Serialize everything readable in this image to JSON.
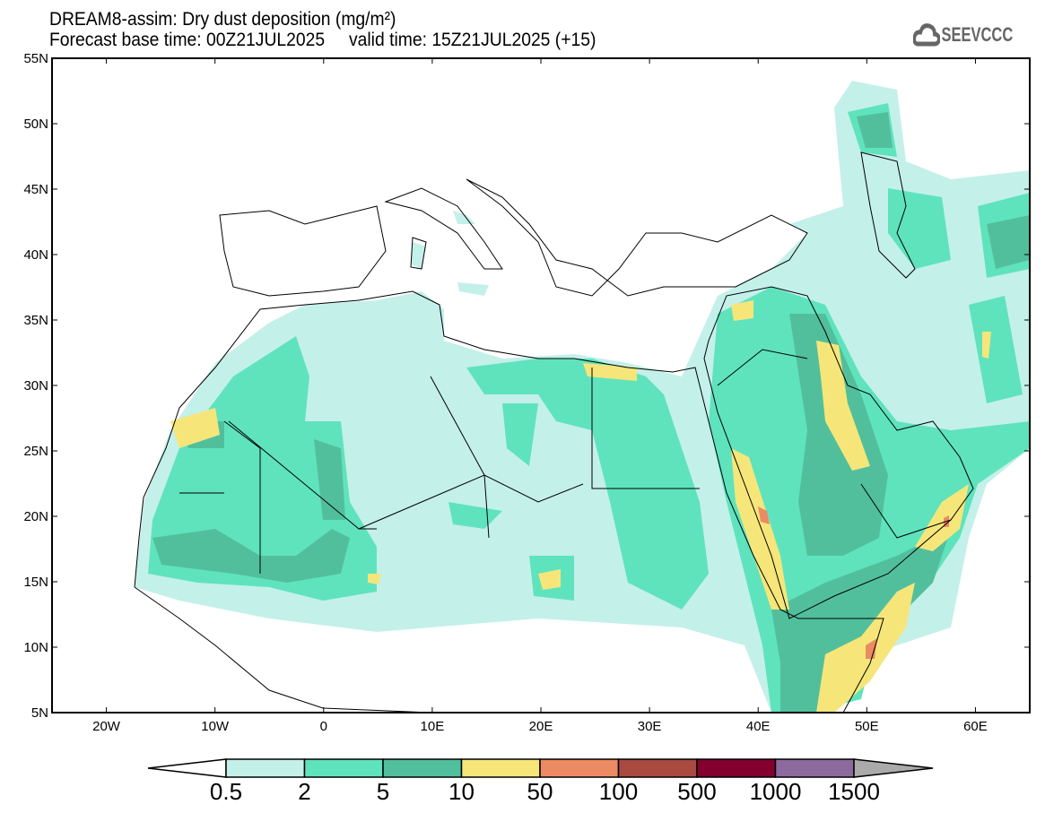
{
  "title": {
    "line1": "DREAM8-assim: Dry dust deposition (mg/m²)",
    "line2": "Forecast base time: 00Z21JUL2025     valid time: 15Z21JUL2025 (+15)"
  },
  "logo": {
    "text": "SEEVCCC",
    "icon": "cloud-icon"
  },
  "map": {
    "lon_range": [
      -25,
      65
    ],
    "lat_range": [
      5,
      55
    ],
    "lat_labels": [
      "55N",
      "50N",
      "45N",
      "40N",
      "35N",
      "30N",
      "25N",
      "20N",
      "15N",
      "10N",
      "5N"
    ],
    "lon_labels": [
      "20W",
      "10W",
      "0",
      "10E",
      "20E",
      "30E",
      "40E",
      "50E",
      "60E"
    ]
  },
  "colorbar": {
    "labels": [
      "0.5",
      "2",
      "5",
      "10",
      "50",
      "100",
      "500",
      "1000",
      "1500"
    ],
    "colors": [
      "#ffffff",
      "#c4f0ea",
      "#5fe3bd",
      "#52bf9c",
      "#f6e67a",
      "#ec8a63",
      "#a9493f",
      "#84002e",
      "#8d6a9d",
      "#aaaaaa"
    ]
  }
}
